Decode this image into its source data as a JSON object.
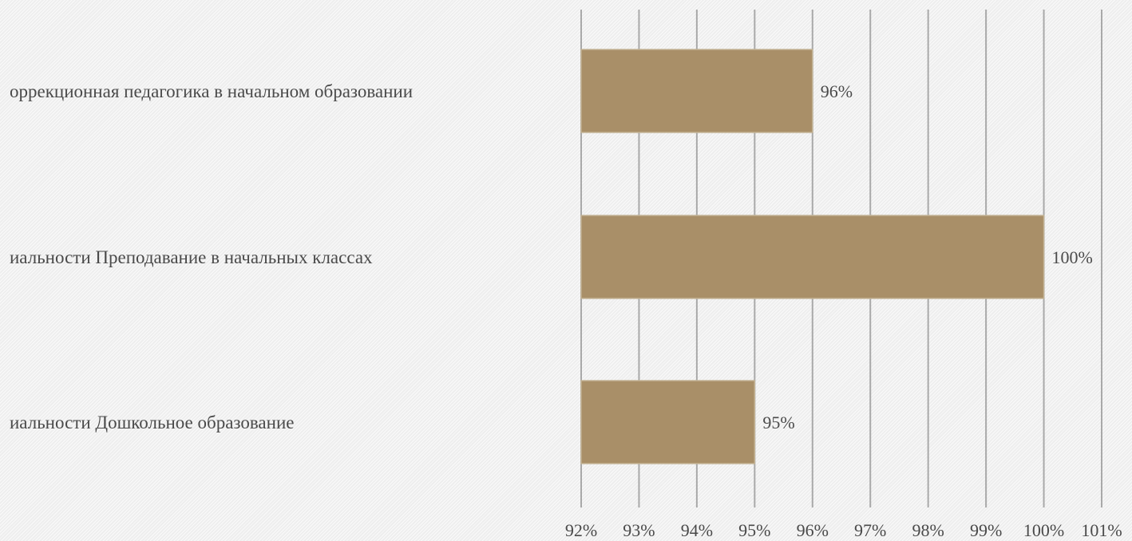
{
  "chart_data": {
    "type": "bar",
    "orientation": "horizontal",
    "categories": [
      "оррекционная педагогика в начальном образовании",
      "иальности Преподавание в начальных классах",
      "иальности Дошкольное образование"
    ],
    "values": [
      96,
      100,
      95
    ],
    "data_labels": [
      "96%",
      "100%",
      "95%"
    ],
    "xlim": [
      92,
      101
    ],
    "x_ticks": [
      92,
      93,
      94,
      95,
      96,
      97,
      98,
      99,
      100,
      101
    ],
    "x_tick_labels": [
      "92%",
      "93%",
      "94%",
      "95%",
      "96%",
      "97%",
      "98%",
      "99%",
      "100%",
      "101%"
    ],
    "title": "",
    "xlabel": "",
    "ylabel": "",
    "grid": "vertical",
    "legend": "none",
    "colors": {
      "bar": "#a98f68",
      "bar_edge": "#c4b496",
      "grid": "#a9a9a9",
      "text": "#4a4a4a"
    }
  }
}
